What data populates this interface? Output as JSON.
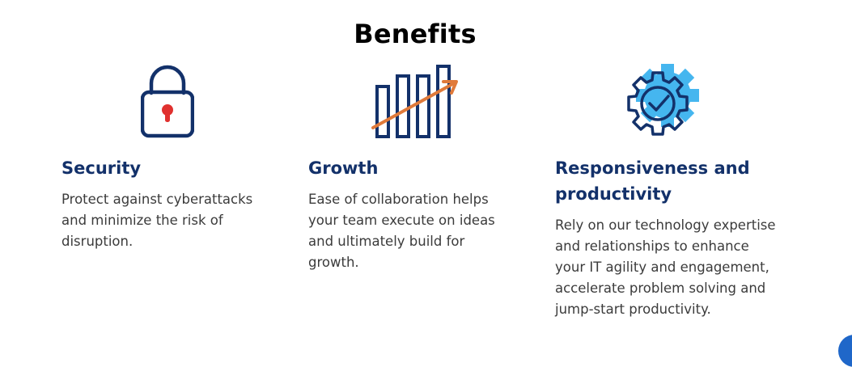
{
  "page": {
    "title": "Benefits"
  },
  "benefits": [
    {
      "icon": "padlock-icon",
      "title": "Security",
      "text": "Protect against cyberattacks and minimize the risk of disruption."
    },
    {
      "icon": "growth-chart-icon",
      "title": "Growth",
      "text": "Ease of collaboration helps your team execute on ideas and ultimately build for growth."
    },
    {
      "icon": "gear-check-icon",
      "title": "Responsiveness and productivity",
      "text": "Rely on our technology expertise and relationships to enhance your IT agility and engagement, accelerate problem solving and jump-start productivity."
    }
  ],
  "colors": {
    "heading": "#13316a",
    "icon_navy": "#13316a",
    "accent_red": "#e0312f",
    "accent_orange": "#e07a3a",
    "accent_light_blue": "#45b6ef",
    "scroll_button": "#1f67c9"
  }
}
